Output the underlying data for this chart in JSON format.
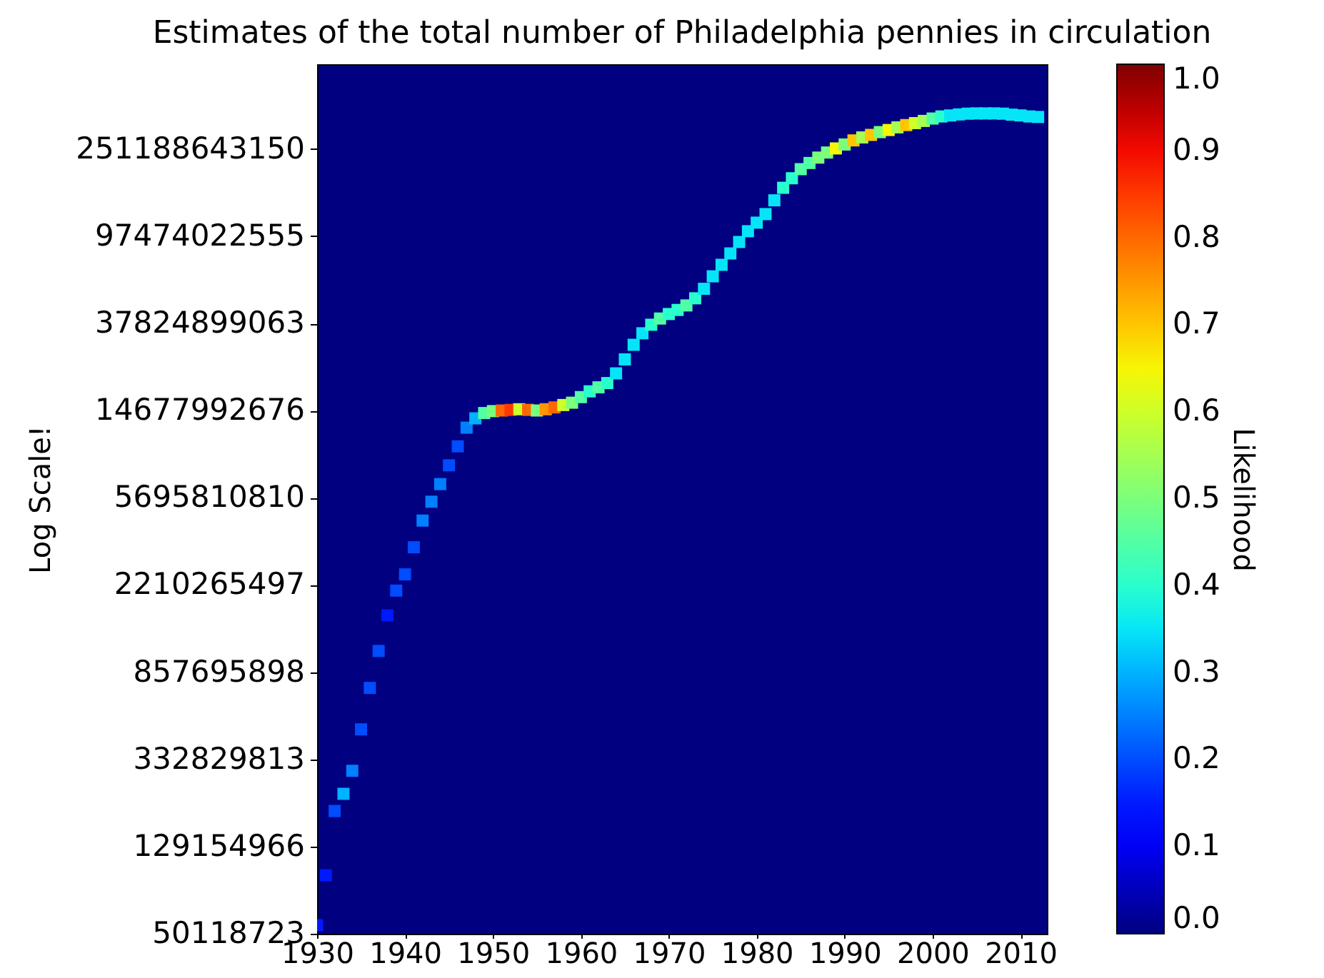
{
  "chart_data": {
    "type": "scatter",
    "title": "Estimates of the total number of Philadelphia pennies in circulation",
    "ylabel": "Log Scale!",
    "clabel": "Likelihood",
    "x": [
      1930,
      1931,
      1932,
      1933,
      1934,
      1935,
      1936,
      1937,
      1938,
      1939,
      1940,
      1941,
      1942,
      1943,
      1944,
      1945,
      1946,
      1947,
      1948,
      1949,
      1950,
      1951,
      1952,
      1953,
      1954,
      1955,
      1956,
      1957,
      1958,
      1959,
      1960,
      1961,
      1962,
      1963,
      1964,
      1965,
      1966,
      1967,
      1968,
      1969,
      1970,
      1971,
      1972,
      1973,
      1974,
      1975,
      1976,
      1977,
      1978,
      1979,
      1980,
      1981,
      1982,
      1983,
      1984,
      1985,
      1986,
      1987,
      1988,
      1989,
      1990,
      1991,
      1992,
      1993,
      1994,
      1995,
      1996,
      1997,
      1998,
      1999,
      2000,
      2001,
      2002,
      2003,
      2004,
      2005,
      2006,
      2007,
      2008,
      2009,
      2010,
      2011,
      2012
    ],
    "values": [
      55000000,
      94600000,
      190000000,
      229000000,
      294000000,
      461000000,
      723000000,
      1080000000,
      1590000000,
      2080000000,
      2480000000,
      3330000000,
      4450000000,
      5460000000,
      6610000000,
      8110000000,
      9960000000,
      12200000000,
      13500000000,
      14300000000,
      14600000000,
      14700000000,
      14800000000,
      14900000000,
      14800000000,
      14700000000,
      14900000000,
      15200000000,
      15600000000,
      16000000000,
      17000000000,
      18100000000,
      18900000000,
      19800000000,
      22000000000,
      25600000000,
      30000000000,
      34000000000,
      37300000000,
      39900000000,
      41900000000,
      43800000000,
      46000000000,
      49700000000,
      55100000000,
      63100000000,
      71500000000,
      80900000000,
      91600000000,
      103000000000,
      113000000000,
      124000000000,
      144000000000,
      165000000000,
      183000000000,
      202000000000,
      216000000000,
      229000000000,
      242000000000,
      253000000000,
      264000000000,
      276000000000,
      285000000000,
      293000000000,
      302000000000,
      309000000000,
      318000000000,
      326000000000,
      333000000000,
      341000000000,
      350000000000,
      358000000000,
      362000000000,
      366000000000,
      369000000000,
      370000000000,
      370000000000,
      370000000000,
      369000000000,
      365000000000,
      362000000000,
      358000000000,
      356000000000
    ],
    "cvalues": [
      0.15,
      0.15,
      0.2,
      0.3,
      0.25,
      0.2,
      0.2,
      0.2,
      0.15,
      0.2,
      0.2,
      0.2,
      0.25,
      0.25,
      0.25,
      0.2,
      0.2,
      0.25,
      0.3,
      0.45,
      0.5,
      0.8,
      0.85,
      0.6,
      0.8,
      0.5,
      0.75,
      0.8,
      0.6,
      0.5,
      0.45,
      0.4,
      0.45,
      0.4,
      0.35,
      0.35,
      0.35,
      0.35,
      0.4,
      0.45,
      0.4,
      0.4,
      0.45,
      0.4,
      0.35,
      0.35,
      0.35,
      0.35,
      0.35,
      0.35,
      0.35,
      0.35,
      0.35,
      0.4,
      0.4,
      0.45,
      0.45,
      0.5,
      0.5,
      0.65,
      0.5,
      0.7,
      0.55,
      0.7,
      0.5,
      0.65,
      0.55,
      0.7,
      0.6,
      0.55,
      0.45,
      0.4,
      0.35,
      0.35,
      0.35,
      0.35,
      0.35,
      0.35,
      0.35,
      0.35,
      0.35,
      0.35,
      0.35
    ],
    "xlim": [
      1930,
      2013
    ],
    "xticks": [
      1930,
      1940,
      1950,
      1960,
      1970,
      1980,
      1990,
      2000,
      2010
    ],
    "ylim": [
      50118723,
      631000000000
    ],
    "yticks": [
      50118723,
      129154966,
      332829813,
      857695898,
      2210265497,
      5695810810,
      14677992676,
      37824899063,
      97474022555,
      251188643150
    ],
    "clim": [
      0,
      1
    ],
    "cticks": [
      {
        "value": 0,
        "label": "0.0"
      },
      0.1,
      0.2,
      0.3,
      0.4,
      0.5,
      0.6,
      0.7,
      0.8,
      0.9,
      {
        "value": 1,
        "label": "1.0"
      }
    ],
    "log": true,
    "marker": "square"
  }
}
